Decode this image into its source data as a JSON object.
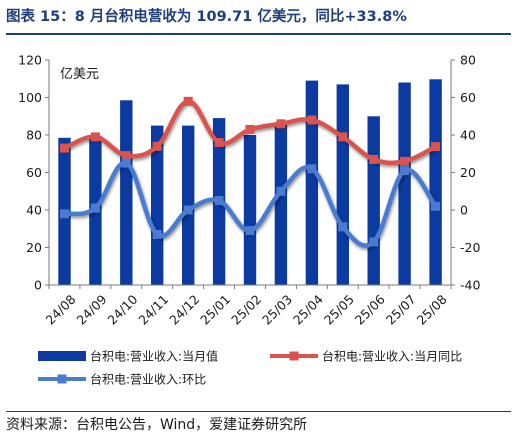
{
  "title": "图表 15：8 月台积电营收为 109.71 亿美元，同比+33.8%",
  "source": "资料来源：台积电公告，Wind，爱建证券研究所",
  "chart_data": {
    "type": "bar+line",
    "categories": [
      "24/08",
      "24/09",
      "24/10",
      "24/11",
      "24/12",
      "25/01",
      "25/02",
      "25/03",
      "25/04",
      "25/05",
      "25/06",
      "25/07",
      "25/08"
    ],
    "left_axis": {
      "unit": "亿美元",
      "ylim": [
        0,
        120
      ],
      "ticks": [
        0,
        20,
        40,
        60,
        80,
        100,
        120
      ]
    },
    "right_axis": {
      "ylim": [
        -40,
        80
      ],
      "ticks": [
        -40,
        -20,
        0,
        20,
        40,
        60,
        80
      ]
    },
    "series": [
      {
        "name": "台积电:营业收入:当月值",
        "kind": "bar",
        "axis": "left",
        "color": "#0b3aa0",
        "values": [
          78.5,
          79.5,
          98.5,
          85.0,
          85.0,
          89.0,
          80.0,
          86.0,
          109.0,
          107.0,
          90.0,
          108.0,
          109.71
        ]
      },
      {
        "name": "台积电:营业收入:当月同比",
        "kind": "line",
        "axis": "right",
        "color": "#d9534f",
        "values": [
          33,
          39,
          29,
          34,
          58,
          36,
          43,
          46,
          48,
          39,
          27,
          26,
          33.8
        ]
      },
      {
        "name": "台积电:营业收入:环比",
        "kind": "line",
        "axis": "right",
        "color": "#4a7bd0",
        "values": [
          -2,
          1,
          25,
          -13,
          0,
          5,
          -11,
          10,
          22,
          -9,
          -17,
          21,
          2
        ]
      }
    ],
    "grid": false,
    "legend": "bottom"
  }
}
